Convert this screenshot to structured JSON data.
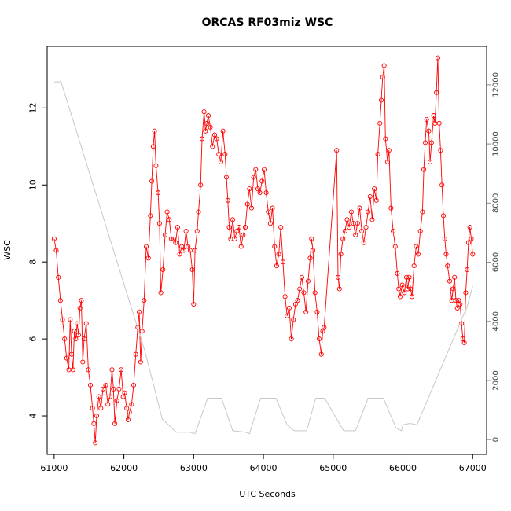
{
  "chart_data": {
    "type": "line",
    "title": "ORCAS RF03miz WSC",
    "xlabel": "UTC Seconds",
    "ylabel": "WSC",
    "xlim": [
      60900,
      67200
    ],
    "ylim": [
      3.0,
      13.6
    ],
    "x_ticks": [
      61000,
      62000,
      63000,
      64000,
      65000,
      66000,
      67000
    ],
    "y_ticks": [
      4,
      6,
      8,
      10,
      12
    ],
    "y2lim": [
      -500,
      13300
    ],
    "y2_ticks": [
      0,
      2000,
      4000,
      6000,
      8000,
      10000,
      12000
    ],
    "grid": false,
    "series": [
      {
        "role": "wsc",
        "color": "#ff0000",
        "marker": "open-circle",
        "axis": "left",
        "points": [
          [
            61000,
            8.6
          ],
          [
            61030,
            8.3
          ],
          [
            61060,
            7.6
          ],
          [
            61090,
            7.0
          ],
          [
            61120,
            6.5
          ],
          [
            61150,
            6.0
          ],
          [
            61180,
            5.5
          ],
          [
            61210,
            5.2
          ],
          [
            61230,
            6.5
          ],
          [
            61250,
            5.6
          ],
          [
            61270,
            5.2
          ],
          [
            61290,
            6.2
          ],
          [
            61310,
            6.0
          ],
          [
            61330,
            6.4
          ],
          [
            61350,
            6.1
          ],
          [
            61370,
            6.8
          ],
          [
            61390,
            7.0
          ],
          [
            61410,
            5.4
          ],
          [
            61430,
            6.0
          ],
          [
            61460,
            6.4
          ],
          [
            61490,
            5.2
          ],
          [
            61520,
            4.8
          ],
          [
            61550,
            4.2
          ],
          [
            61570,
            3.8
          ],
          [
            61590,
            3.3
          ],
          [
            61610,
            4.0
          ],
          [
            61640,
            4.5
          ],
          [
            61670,
            4.2
          ],
          [
            61700,
            4.7
          ],
          [
            61740,
            4.8
          ],
          [
            61770,
            4.3
          ],
          [
            61800,
            4.5
          ],
          [
            61830,
            5.2
          ],
          [
            61850,
            4.7
          ],
          [
            61870,
            3.8
          ],
          [
            61900,
            4.4
          ],
          [
            61930,
            4.7
          ],
          [
            61960,
            5.2
          ],
          [
            61990,
            4.5
          ],
          [
            62010,
            4.6
          ],
          [
            62040,
            4.2
          ],
          [
            62060,
            3.9
          ],
          [
            62080,
            4.1
          ],
          [
            62110,
            4.3
          ],
          [
            62140,
            4.8
          ],
          [
            62170,
            5.6
          ],
          [
            62200,
            6.3
          ],
          [
            62220,
            6.7
          ],
          [
            62240,
            5.4
          ],
          [
            62260,
            6.2
          ],
          [
            62290,
            7.0
          ],
          [
            62320,
            8.4
          ],
          [
            62350,
            8.1
          ],
          [
            62380,
            9.2
          ],
          [
            62400,
            10.1
          ],
          [
            62420,
            11.0
          ],
          [
            62440,
            11.4
          ],
          [
            62460,
            10.5
          ],
          [
            62490,
            9.8
          ],
          [
            62510,
            9.0
          ],
          [
            62530,
            7.2
          ],
          [
            62560,
            7.8
          ],
          [
            62590,
            8.7
          ],
          [
            62620,
            9.3
          ],
          [
            62650,
            9.1
          ],
          [
            62680,
            8.6
          ],
          [
            62710,
            8.6
          ],
          [
            62740,
            8.5
          ],
          [
            62770,
            8.9
          ],
          [
            62800,
            8.2
          ],
          [
            62830,
            8.4
          ],
          [
            62860,
            8.3
          ],
          [
            62890,
            8.8
          ],
          [
            62920,
            8.4
          ],
          [
            62950,
            8.3
          ],
          [
            62980,
            7.8
          ],
          [
            63000,
            6.9
          ],
          [
            63020,
            8.3
          ],
          [
            63050,
            8.8
          ],
          [
            63070,
            9.3
          ],
          [
            63100,
            10.0
          ],
          [
            63120,
            11.2
          ],
          [
            63150,
            11.9
          ],
          [
            63170,
            11.4
          ],
          [
            63190,
            11.6
          ],
          [
            63210,
            11.8
          ],
          [
            63240,
            11.5
          ],
          [
            63270,
            11.0
          ],
          [
            63300,
            11.3
          ],
          [
            63330,
            11.2
          ],
          [
            63360,
            10.8
          ],
          [
            63390,
            10.6
          ],
          [
            63420,
            11.4
          ],
          [
            63450,
            10.8
          ],
          [
            63470,
            10.2
          ],
          [
            63490,
            9.6
          ],
          [
            63510,
            8.9
          ],
          [
            63530,
            8.6
          ],
          [
            63560,
            9.1
          ],
          [
            63590,
            8.6
          ],
          [
            63620,
            8.8
          ],
          [
            63650,
            8.9
          ],
          [
            63680,
            8.4
          ],
          [
            63710,
            8.7
          ],
          [
            63740,
            8.9
          ],
          [
            63770,
            9.5
          ],
          [
            63800,
            9.9
          ],
          [
            63830,
            9.4
          ],
          [
            63860,
            10.2
          ],
          [
            63890,
            10.4
          ],
          [
            63920,
            9.9
          ],
          [
            63950,
            9.8
          ],
          [
            63980,
            10.1
          ],
          [
            64010,
            10.4
          ],
          [
            64040,
            9.8
          ],
          [
            64070,
            9.3
          ],
          [
            64100,
            9.0
          ],
          [
            64130,
            9.4
          ],
          [
            64160,
            8.4
          ],
          [
            64190,
            7.9
          ],
          [
            64220,
            8.2
          ],
          [
            64250,
            8.9
          ],
          [
            64280,
            8.0
          ],
          [
            64310,
            7.1
          ],
          [
            64340,
            6.6
          ],
          [
            64370,
            6.8
          ],
          [
            64400,
            6.0
          ],
          [
            64430,
            6.5
          ],
          [
            64460,
            6.9
          ],
          [
            64490,
            7.0
          ],
          [
            64520,
            7.3
          ],
          [
            64550,
            7.6
          ],
          [
            64580,
            7.2
          ],
          [
            64610,
            6.7
          ],
          [
            64640,
            7.5
          ],
          [
            64670,
            8.1
          ],
          [
            64690,
            8.6
          ],
          [
            64710,
            8.3
          ],
          [
            64740,
            7.2
          ],
          [
            64770,
            6.7
          ],
          [
            64800,
            6.0
          ],
          [
            64830,
            5.6
          ],
          [
            64850,
            6.2
          ],
          [
            64870,
            6.3
          ],
          [
            65050,
            10.9
          ],
          [
            65070,
            7.6
          ],
          [
            65090,
            7.3
          ],
          [
            65110,
            8.2
          ],
          [
            65140,
            8.6
          ],
          [
            65170,
            8.8
          ],
          [
            65200,
            9.1
          ],
          [
            65230,
            8.9
          ],
          [
            65260,
            9.3
          ],
          [
            65290,
            9.0
          ],
          [
            65320,
            8.7
          ],
          [
            65350,
            9.0
          ],
          [
            65380,
            9.4
          ],
          [
            65410,
            8.8
          ],
          [
            65440,
            8.5
          ],
          [
            65470,
            8.9
          ],
          [
            65500,
            9.3
          ],
          [
            65530,
            9.7
          ],
          [
            65560,
            9.1
          ],
          [
            65590,
            9.9
          ],
          [
            65620,
            9.6
          ],
          [
            65640,
            10.8
          ],
          [
            65670,
            11.6
          ],
          [
            65690,
            12.2
          ],
          [
            65710,
            12.8
          ],
          [
            65730,
            13.1
          ],
          [
            65750,
            11.2
          ],
          [
            65780,
            10.6
          ],
          [
            65800,
            10.9
          ],
          [
            65830,
            9.4
          ],
          [
            65860,
            8.8
          ],
          [
            65890,
            8.4
          ],
          [
            65920,
            7.7
          ],
          [
            65940,
            7.3
          ],
          [
            65960,
            7.1
          ],
          [
            65990,
            7.4
          ],
          [
            66020,
            7.2
          ],
          [
            66050,
            7.6
          ],
          [
            66070,
            7.3
          ],
          [
            66090,
            7.6
          ],
          [
            66110,
            7.3
          ],
          [
            66130,
            7.1
          ],
          [
            66160,
            7.9
          ],
          [
            66190,
            8.4
          ],
          [
            66220,
            8.2
          ],
          [
            66250,
            8.8
          ],
          [
            66280,
            9.3
          ],
          [
            66300,
            10.4
          ],
          [
            66320,
            11.1
          ],
          [
            66340,
            11.7
          ],
          [
            66370,
            11.4
          ],
          [
            66390,
            10.6
          ],
          [
            66410,
            11.1
          ],
          [
            66440,
            11.8
          ],
          [
            66460,
            11.6
          ],
          [
            66480,
            12.4
          ],
          [
            66500,
            13.3
          ],
          [
            66520,
            11.6
          ],
          [
            66540,
            10.9
          ],
          [
            66560,
            10.0
          ],
          [
            66580,
            9.2
          ],
          [
            66600,
            8.6
          ],
          [
            66620,
            8.2
          ],
          [
            66640,
            7.9
          ],
          [
            66670,
            7.5
          ],
          [
            66700,
            7.0
          ],
          [
            66720,
            7.3
          ],
          [
            66740,
            7.6
          ],
          [
            66760,
            7.0
          ],
          [
            66780,
            6.8
          ],
          [
            66800,
            7.0
          ],
          [
            66820,
            6.9
          ],
          [
            66840,
            6.4
          ],
          [
            66860,
            6.0
          ],
          [
            66880,
            5.9
          ],
          [
            66900,
            7.2
          ],
          [
            66920,
            7.8
          ],
          [
            66940,
            8.5
          ],
          [
            66960,
            8.9
          ],
          [
            66980,
            8.6
          ],
          [
            67000,
            8.2
          ]
        ]
      },
      {
        "role": "altitude",
        "color": "#c8c8c8",
        "marker": "none",
        "axis": "right",
        "points": [
          [
            61000,
            12100
          ],
          [
            61100,
            12100
          ],
          [
            62300,
            3000
          ],
          [
            62550,
            700
          ],
          [
            62750,
            250
          ],
          [
            62950,
            250
          ],
          [
            63020,
            200
          ],
          [
            63200,
            1400
          ],
          [
            63400,
            1400
          ],
          [
            63560,
            300
          ],
          [
            63750,
            250
          ],
          [
            63800,
            200
          ],
          [
            63960,
            1400
          ],
          [
            64180,
            1400
          ],
          [
            64340,
            500
          ],
          [
            64440,
            300
          ],
          [
            64620,
            300
          ],
          [
            64750,
            1400
          ],
          [
            64880,
            1400
          ],
          [
            65000,
            900
          ],
          [
            65150,
            300
          ],
          [
            65320,
            300
          ],
          [
            65500,
            1400
          ],
          [
            65720,
            1400
          ],
          [
            65900,
            400
          ],
          [
            65980,
            300
          ],
          [
            66000,
            500
          ],
          [
            66100,
            550
          ],
          [
            66200,
            500
          ],
          [
            66920,
            4500
          ],
          [
            67000,
            5200
          ]
        ]
      }
    ]
  }
}
